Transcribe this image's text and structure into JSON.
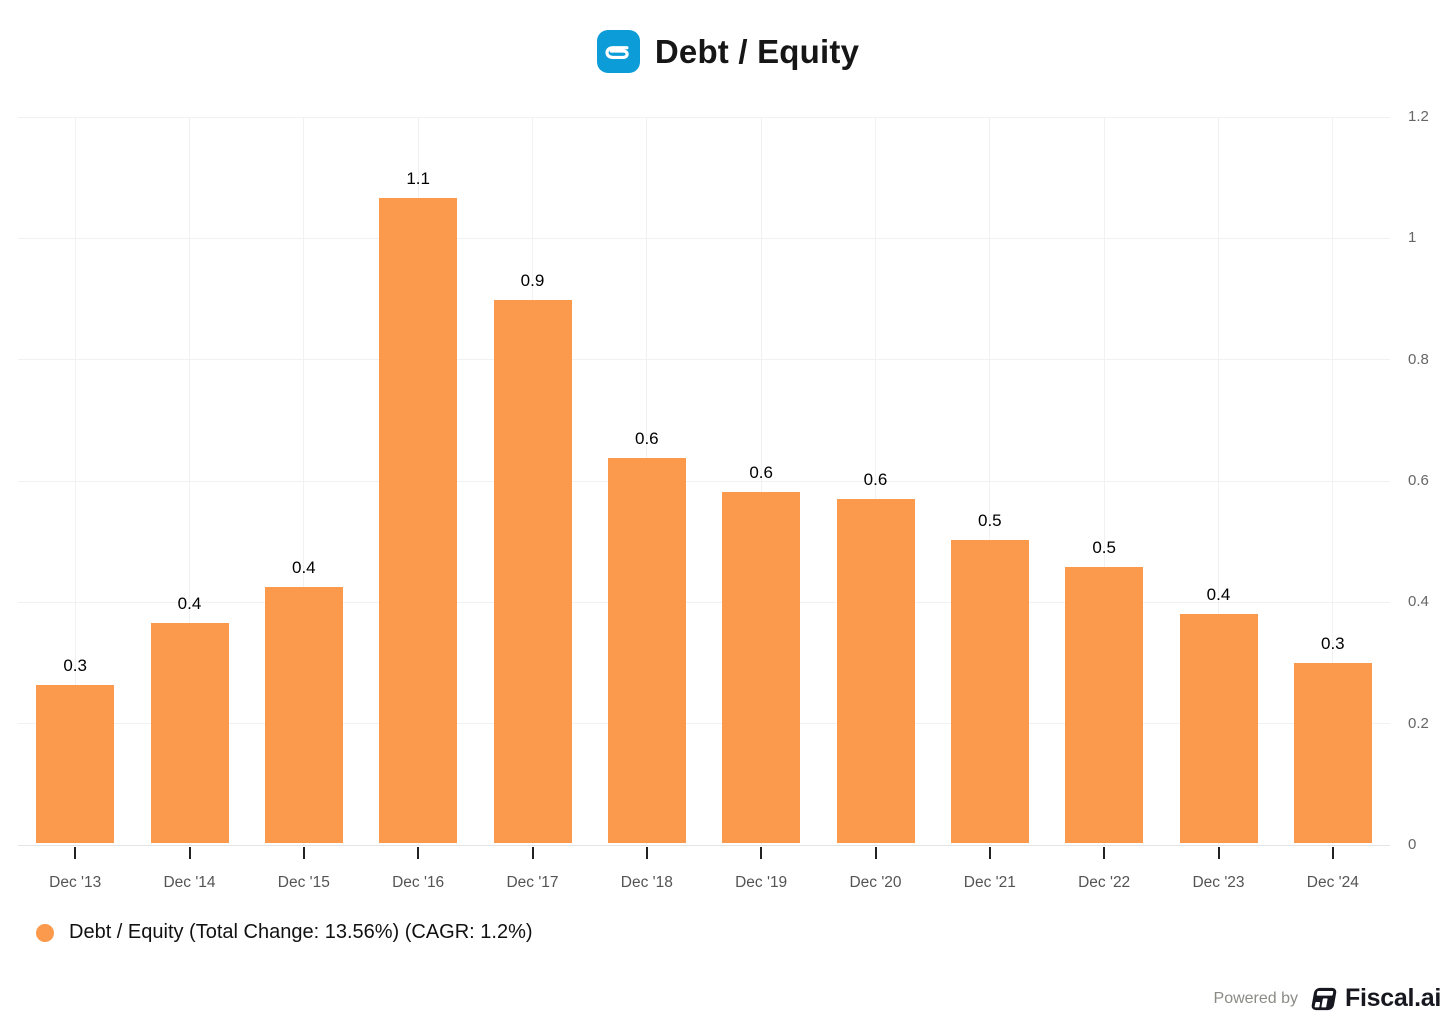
{
  "header": {
    "title": "Debt / Equity",
    "logo_icon": "company-logo-icon"
  },
  "chart_data": {
    "type": "bar",
    "title": "Debt / Equity",
    "categories": [
      "Dec '13",
      "Dec '14",
      "Dec '15",
      "Dec '16",
      "Dec '17",
      "Dec '18",
      "Dec '19",
      "Dec '20",
      "Dec '21",
      "Dec '22",
      "Dec '23",
      "Dec '24"
    ],
    "values": [
      0.264,
      0.366,
      0.425,
      1.066,
      0.898,
      0.638,
      0.582,
      0.57,
      0.502,
      0.458,
      0.381,
      0.3
    ],
    "bar_labels": [
      "0.3",
      "0.4",
      "0.4",
      "1.1",
      "0.9",
      "0.6",
      "0.6",
      "0.6",
      "0.5",
      "0.5",
      "0.4",
      "0.3"
    ],
    "ylim": [
      0,
      1.2
    ],
    "yticks": [
      {
        "v": 0,
        "label": "0"
      },
      {
        "v": 0.2,
        "label": "0.2"
      },
      {
        "v": 0.4,
        "label": "0.4"
      },
      {
        "v": 0.6,
        "label": "0.6"
      },
      {
        "v": 0.8,
        "label": "0.8"
      },
      {
        "v": 1,
        "label": "1"
      },
      {
        "v": 1.2,
        "label": "1.2"
      }
    ],
    "xlabel": "",
    "ylabel": "",
    "grid": true,
    "axis_labels_side": "right",
    "legend_position": "bottom-left"
  },
  "legend": {
    "label": "Debt / Equity (Total Change: 13.56%) (CAGR: 1.2%)",
    "marker": "legend-marker-icon"
  },
  "footer": {
    "powered_by": "Powered by",
    "brand": "Fiscal.ai"
  },
  "colors": {
    "bar": "#fb9a4c",
    "accent_blue": "#0c9cd8",
    "grid": "#f1f1f3",
    "axis": "#e4e4e6",
    "brand_dark": "#17171f",
    "value_label": "#000000",
    "x_label": "#545454",
    "y_label": "#666666"
  }
}
